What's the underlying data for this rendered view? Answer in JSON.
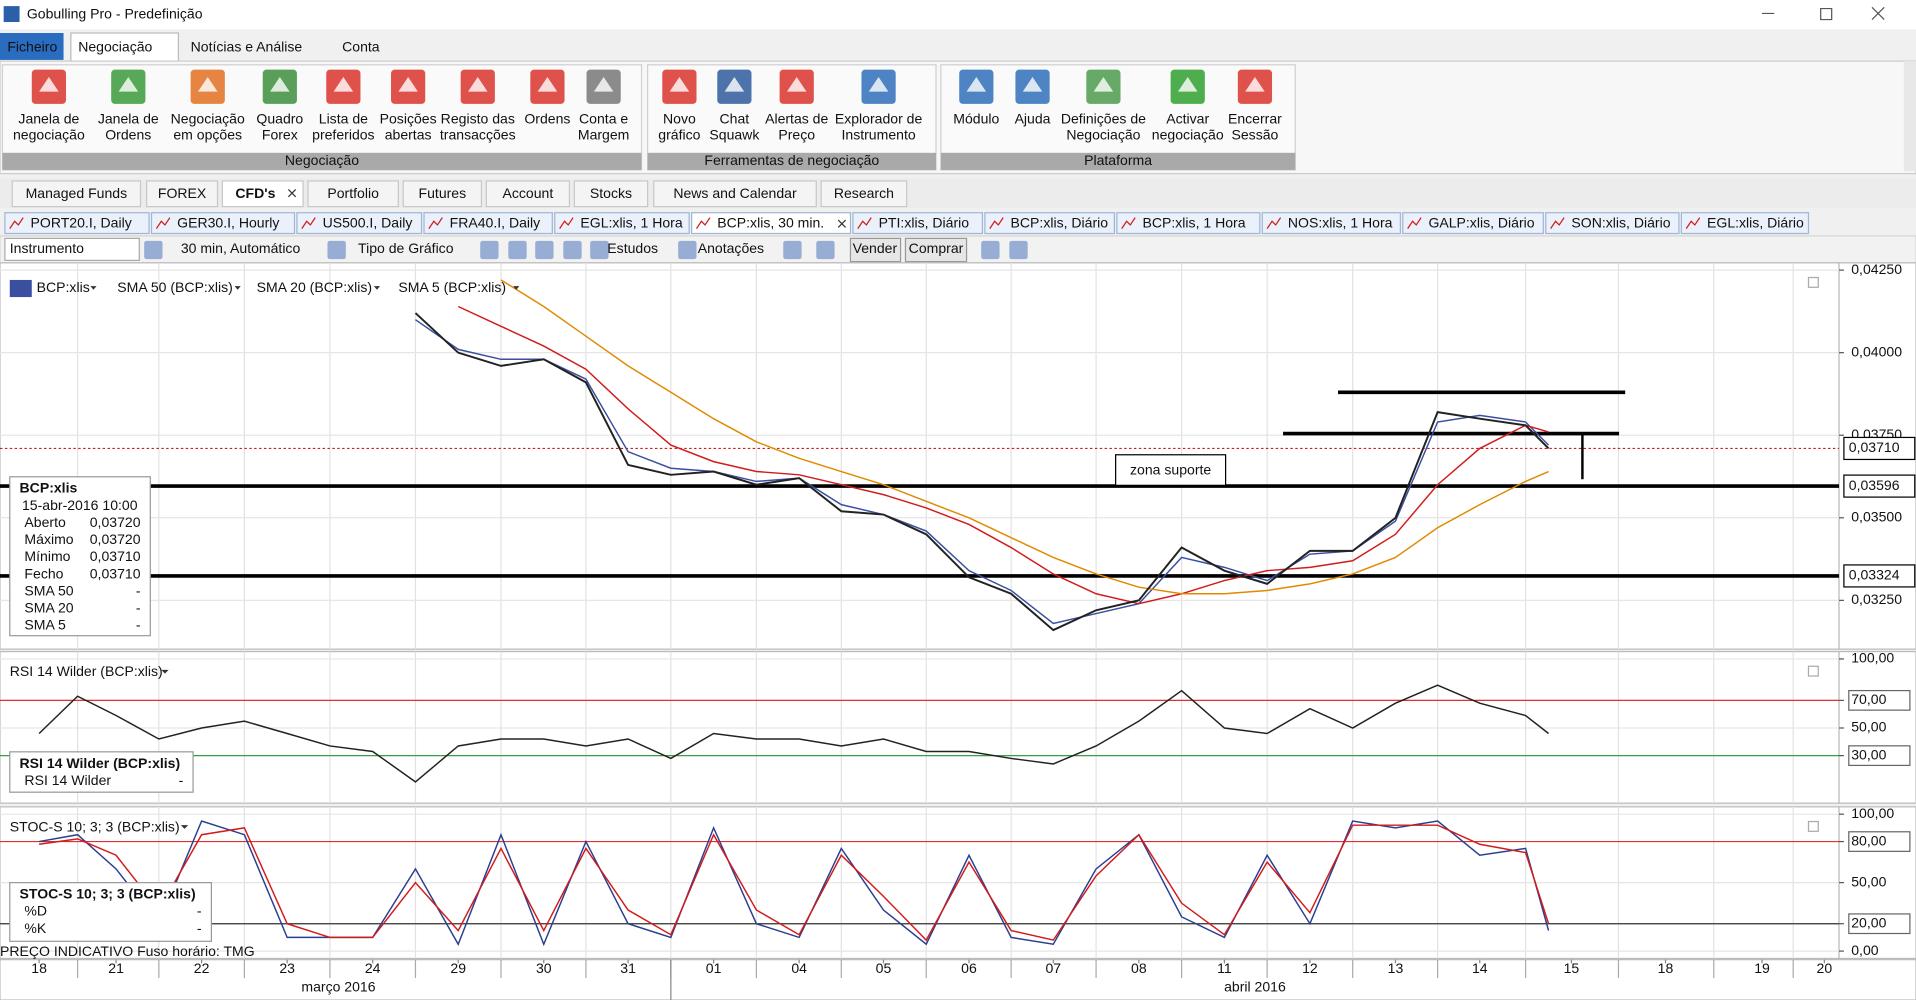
{
  "window": {
    "title": "Gobulling Pro - Predefinição"
  },
  "menu": [
    "Ficheiro",
    "Negociação",
    "Notícias e Análise",
    "Conta"
  ],
  "ribbon": [
    {
      "label": "Negociação",
      "buttons": [
        [
          "Janela de",
          "negociação"
        ],
        [
          "Janela de",
          "Ordens"
        ],
        [
          "Negociação",
          "em opções"
        ],
        [
          "Quadro",
          "Forex"
        ],
        [
          "Lista de",
          "preferidos"
        ],
        [
          "Posições",
          "abertas"
        ],
        [
          "Registo das",
          "transacções"
        ],
        [
          "Ordens"
        ],
        [
          "Conta e",
          "Margem"
        ]
      ]
    },
    {
      "label": "Ferramentas de negociação",
      "buttons": [
        [
          "Novo",
          "gráfico"
        ],
        [
          "Chat",
          "Squawk"
        ],
        [
          "Alertas de",
          "Preço"
        ],
        [
          "Explorador de",
          "Instrumento"
        ]
      ]
    },
    {
      "label": "Plataforma",
      "buttons": [
        [
          "Módulo"
        ],
        [
          "Ajuda"
        ],
        [
          "Definições de",
          "Negociação"
        ],
        [
          "Activar",
          "negociação"
        ],
        [
          "Encerrar",
          "Sessão"
        ]
      ]
    }
  ],
  "workspace_tabs": [
    "Managed Funds",
    "FOREX",
    "CFD's",
    "Portfolio",
    "Futures",
    "Account",
    "Stocks",
    "News and Calendar",
    "Research"
  ],
  "chart_tabs": [
    "PORT20.I, Daily",
    "GER30.I, Hourly",
    "US500.I, Daily",
    "FRA40.I, Daily",
    "EGL:xlis, 1 Hora",
    "BCP:xlis, 30 min.",
    "PTI:xlis, Diário",
    "BCP:xlis, Diário",
    "BCP:xlis, 1 Hora",
    "NOS:xlis, 1 Hora",
    "GALP:xlis, Diário",
    "SON:xlis, Diário",
    "EGL:xlis, Diário"
  ],
  "toolbar": {
    "instrument": "Instrumento",
    "period": "30 min, Automático",
    "chart_type": "Tipo de Gráfico",
    "studies": "Estudos",
    "annotations": "Anotações",
    "sell": "Vender",
    "buy": "Comprar"
  },
  "footer_note": "PREÇO INDICATIVO   Fuso horário: TMG",
  "chart_data": [
    {
      "type": "line",
      "title": "BCP:xlis",
      "x": [
        4.5,
        5,
        5.5,
        6,
        6.5,
        7,
        7.5,
        8,
        8.5,
        9,
        9.5,
        10,
        10.5,
        11,
        11.5,
        12,
        12.5,
        13,
        13.5,
        14,
        14.5,
        15,
        15.5,
        16,
        16.5,
        17,
        17.5,
        17.75
      ],
      "series": [
        {
          "name": "BCP:xlis",
          "color": "#222222",
          "values": [
            0.0412,
            0.04,
            0.0396,
            0.0398,
            0.0391,
            0.0366,
            0.0363,
            0.0364,
            0.036,
            0.0362,
            0.0352,
            0.0351,
            0.0345,
            0.0332,
            0.0327,
            0.0316,
            0.0322,
            0.0325,
            0.0341,
            0.0334,
            0.033,
            0.034,
            0.034,
            0.035,
            0.0382,
            0.038,
            0.0378,
            0.0371
          ]
        },
        {
          "name": "SMA 50 (BCP:xlis)",
          "color": "#e08a00",
          "values": [
            null,
            null,
            0.0422,
            0.0414,
            0.0405,
            0.0396,
            0.0388,
            0.038,
            0.0373,
            0.0368,
            0.0364,
            0.036,
            0.0355,
            0.035,
            0.0344,
            0.0338,
            0.0333,
            0.0329,
            0.0327,
            0.0327,
            0.0328,
            0.033,
            0.0333,
            0.0338,
            0.0347,
            0.0354,
            0.0361,
            0.0364
          ]
        },
        {
          "name": "SMA 20 (BCP:xlis)",
          "color": "#d21c1c",
          "values": [
            null,
            0.0414,
            0.0408,
            0.0402,
            0.0395,
            0.0383,
            0.0372,
            0.0367,
            0.0364,
            0.0363,
            0.036,
            0.0357,
            0.0353,
            0.0348,
            0.0341,
            0.0333,
            0.0327,
            0.0324,
            0.0327,
            0.0331,
            0.0334,
            0.0335,
            0.0337,
            0.0345,
            0.036,
            0.0371,
            0.0378,
            0.0376
          ]
        },
        {
          "name": "SMA 5 (BCP:xlis)",
          "color": "#3a4fa0",
          "values": [
            0.041,
            0.0401,
            0.0398,
            0.0398,
            0.0392,
            0.037,
            0.0365,
            0.0364,
            0.0361,
            0.0362,
            0.0354,
            0.0351,
            0.0346,
            0.0334,
            0.0328,
            0.0318,
            0.0321,
            0.0324,
            0.0338,
            0.0335,
            0.0331,
            0.0339,
            0.034,
            0.0349,
            0.0379,
            0.0381,
            0.0379,
            0.0372
          ]
        }
      ],
      "ylim": [
        0.03106,
        0.04272
      ],
      "yticks": [
        {
          "value": 0.0425,
          "label": "0,04250"
        },
        {
          "value": 0.04,
          "label": "0,04000"
        },
        {
          "value": 0.0375,
          "label": "0,03750"
        },
        {
          "value": 0.035,
          "label": "0,03500"
        },
        {
          "value": 0.0325,
          "label": "0,03250"
        }
      ],
      "price_markers": [
        {
          "value": 0.0371,
          "label": "0,03710"
        },
        {
          "value": 0.03596,
          "label": "0,03596"
        },
        {
          "value": 0.03324,
          "label": "0,03324"
        }
      ],
      "resistance_levels": [
        0.0388,
        0.03755
      ],
      "annotation": "zona suporte",
      "info_box": {
        "title": "BCP:xlis",
        "date": "15-abr-2016 10:00",
        "rows": [
          [
            "Aberto",
            "0,03720"
          ],
          [
            "Máximo",
            "0,03720"
          ],
          [
            "Mínimo",
            "0,03710"
          ],
          [
            "Fecho",
            "0,03710"
          ],
          [
            "SMA 50",
            "-"
          ],
          [
            "SMA 20",
            "-"
          ],
          [
            "SMA 5",
            "-"
          ]
        ]
      }
    },
    {
      "type": "line",
      "title": "RSI 14 Wilder (BCP:xlis)",
      "x": [
        0,
        0.5,
        1,
        1.5,
        2,
        2.5,
        3,
        3.5,
        4,
        4.5,
        5,
        5.5,
        6,
        6.5,
        7,
        7.5,
        8,
        8.5,
        9,
        9.5,
        10,
        10.5,
        11,
        11.5,
        12,
        12.5,
        13,
        13.5,
        14,
        14.5,
        15,
        15.5,
        16,
        16.5,
        17,
        17.5,
        17.75
      ],
      "series": [
        {
          "name": "RSI 14 Wilder",
          "color": "#222222",
          "values": [
            46,
            73,
            59,
            42,
            50,
            55,
            46,
            37,
            33,
            11,
            37,
            42,
            42,
            37,
            42,
            28,
            46,
            42,
            42,
            37,
            42,
            33,
            33,
            28,
            24,
            37,
            55,
            77,
            50,
            46,
            64,
            50,
            68,
            81,
            68,
            59,
            46
          ]
        }
      ],
      "ylim": [
        0,
        100
      ],
      "yticks": [
        {
          "value": 30,
          "label": "30,00"
        },
        {
          "value": 50,
          "label": "50,00"
        },
        {
          "value": 70,
          "label": "70,00"
        },
        {
          "value": 100,
          "label": "100,00"
        }
      ],
      "levels": [
        {
          "value": 70,
          "color": "#e03030"
        },
        {
          "value": 30,
          "color": "#3aa040"
        }
      ],
      "info_box": {
        "title": "RSI 14 Wilder (BCP:xlis)",
        "rows": [
          [
            "RSI 14 Wilder",
            "-"
          ]
        ]
      }
    },
    {
      "type": "line",
      "title": "STOC-S 10; 3; 3 (BCP:xlis)",
      "x": [
        0,
        0.5,
        1,
        1.5,
        2,
        2.5,
        3,
        3.5,
        4,
        4.5,
        5,
        5.5,
        6,
        6.5,
        7,
        7.5,
        8,
        8.5,
        9,
        9.5,
        10,
        10.5,
        11,
        11.5,
        12,
        12.5,
        13,
        13.5,
        14,
        14.5,
        15,
        15.5,
        16,
        16.5,
        17,
        17.5,
        17.75
      ],
      "series": [
        {
          "name": "%D",
          "color": "#d21c1c",
          "values": [
            78,
            82,
            70,
            30,
            85,
            90,
            20,
            10,
            10,
            50,
            15,
            75,
            15,
            75,
            30,
            12,
            85,
            30,
            12,
            70,
            40,
            8,
            65,
            15,
            8,
            55,
            85,
            35,
            12,
            65,
            28,
            92,
            92,
            92,
            78,
            72,
            20
          ]
        },
        {
          "name": "%K",
          "color": "#2a3f8f",
          "values": [
            80,
            85,
            60,
            20,
            95,
            85,
            10,
            10,
            10,
            60,
            5,
            85,
            5,
            80,
            20,
            10,
            90,
            20,
            10,
            75,
            30,
            5,
            70,
            10,
            5,
            60,
            85,
            25,
            10,
            70,
            20,
            95,
            90,
            95,
            70,
            75,
            15
          ]
        }
      ],
      "ylim": [
        0,
        100
      ],
      "yticks": [
        {
          "value": 0,
          "label": "0,00"
        },
        {
          "value": 20,
          "label": "20,00"
        },
        {
          "value": 50,
          "label": "50,00"
        },
        {
          "value": 80,
          "label": "80,00"
        },
        {
          "value": 100,
          "label": "100,00"
        }
      ],
      "levels": [
        {
          "value": 80,
          "color": "#e03030"
        },
        {
          "value": 20,
          "color": "#333333"
        }
      ],
      "info_box": {
        "title": "STOC-S 10; 3; 3 (BCP:xlis)",
        "rows": [
          [
            "%D",
            "-"
          ],
          [
            "%K",
            "-"
          ]
        ]
      },
      "xticks": [
        {
          "value": 0,
          "label": "18"
        },
        {
          "value": 1,
          "label": "21"
        },
        {
          "value": 2,
          "label": "22"
        },
        {
          "value": 3,
          "label": "23"
        },
        {
          "value": 4,
          "label": "24"
        },
        {
          "value": 5,
          "label": "29"
        },
        {
          "value": 6,
          "label": "30"
        },
        {
          "value": 7,
          "label": "31"
        },
        {
          "value": 8,
          "label": "01"
        },
        {
          "value": 9,
          "label": "04"
        },
        {
          "value": 10,
          "label": "05"
        },
        {
          "value": 11,
          "label": "06"
        },
        {
          "value": 12,
          "label": "07"
        },
        {
          "value": 13,
          "label": "08"
        },
        {
          "value": 14,
          "label": "11"
        },
        {
          "value": 15,
          "label": "12"
        },
        {
          "value": 16,
          "label": "13"
        },
        {
          "value": 17,
          "label": "14"
        },
        {
          "value": 18,
          "label": "15"
        },
        {
          "value": 19,
          "label": "18"
        },
        {
          "value": 20,
          "label": "19"
        },
        {
          "value": 21,
          "label": "20"
        }
      ],
      "months": [
        "março 2016",
        "abril 2016"
      ]
    }
  ]
}
